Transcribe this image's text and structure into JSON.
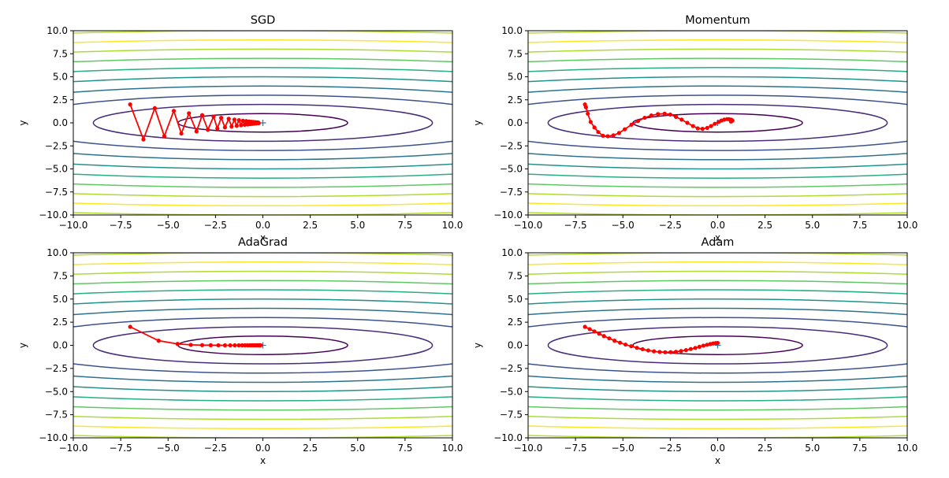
{
  "chart_data": [
    {
      "type": "line",
      "title": "SGD",
      "xlabel": "x",
      "ylabel": "y",
      "xlim": [
        -10,
        10
      ],
      "ylim": [
        -10,
        10
      ],
      "xticks": [
        "−10.0",
        "−7.5",
        "−5.0",
        "−2.5",
        "0.0",
        "2.5",
        "5.0",
        "7.5",
        "10.0"
      ],
      "yticks": [
        "−10.0",
        "−7.5",
        "−5.0",
        "−2.5",
        "0.0",
        "2.5",
        "5.0",
        "7.5",
        "10.0"
      ],
      "contour_levels": [
        1,
        4,
        9,
        16,
        25,
        36,
        49,
        64,
        81,
        100
      ],
      "minimum_marker": [
        0,
        0
      ],
      "series": [
        {
          "color": "#ff0000",
          "x": [
            -7.0,
            -6.3,
            -5.7,
            -5.2,
            -4.7,
            -4.3,
            -3.9,
            -3.5,
            -3.2,
            -2.9,
            -2.6,
            -2.4,
            -2.2,
            -2.0,
            -1.8,
            -1.65,
            -1.5,
            -1.38,
            -1.26,
            -1.15,
            -1.05,
            -0.96,
            -0.88,
            -0.81,
            -0.74,
            -0.68,
            -0.62,
            -0.57,
            -0.52,
            -0.48,
            -0.44,
            -0.41,
            -0.38,
            -0.35,
            -0.32,
            -0.3,
            -0.28,
            -0.26,
            -0.24,
            -0.22
          ],
          "y": [
            2.0,
            -1.8,
            1.6,
            -1.45,
            1.3,
            -1.16,
            1.04,
            -0.93,
            0.84,
            -0.75,
            0.68,
            -0.61,
            0.55,
            -0.49,
            0.44,
            -0.4,
            0.36,
            -0.32,
            0.29,
            -0.26,
            0.23,
            -0.21,
            0.19,
            -0.17,
            0.15,
            -0.14,
            0.12,
            -0.11,
            0.1,
            -0.09,
            0.08,
            -0.07,
            0.065,
            -0.06,
            0.05,
            -0.045,
            0.04,
            -0.035,
            0.03,
            -0.03
          ]
        }
      ]
    },
    {
      "type": "line",
      "title": "Momentum",
      "xlabel": "x",
      "ylabel": "y",
      "xlim": [
        -10,
        10
      ],
      "ylim": [
        -10,
        10
      ],
      "xticks": [
        "−10.0",
        "−7.5",
        "−5.0",
        "−2.5",
        "0.0",
        "2.5",
        "5.0",
        "7.5",
        "10.0"
      ],
      "yticks": [
        "−10.0",
        "−7.5",
        "−5.0",
        "−2.5",
        "0.0",
        "2.5",
        "5.0",
        "7.5",
        "10.0"
      ],
      "contour_levels": [
        1,
        4,
        9,
        16,
        25,
        36,
        49,
        64,
        81,
        100
      ],
      "minimum_marker": [
        0,
        0
      ],
      "series": [
        {
          "color": "#ff0000",
          "x": [
            -7.0,
            -6.95,
            -6.85,
            -6.7,
            -6.5,
            -6.3,
            -6.05,
            -5.8,
            -5.5,
            -5.2,
            -4.9,
            -4.55,
            -4.2,
            -3.85,
            -3.5,
            -3.15,
            -2.8,
            -2.5,
            -2.2,
            -1.9,
            -1.6,
            -1.3,
            -1.05,
            -0.8,
            -0.55,
            -0.35,
            -0.15,
            0.05,
            0.2,
            0.35,
            0.5,
            0.6,
            0.7,
            0.75,
            0.78,
            0.75,
            0.7
          ],
          "y": [
            2.0,
            1.7,
            1.0,
            0.1,
            -0.5,
            -1.0,
            -1.4,
            -1.45,
            -1.35,
            -1.1,
            -0.7,
            -0.2,
            0.2,
            0.55,
            0.8,
            0.95,
            1.0,
            0.9,
            0.65,
            0.35,
            0.0,
            -0.35,
            -0.6,
            -0.65,
            -0.55,
            -0.35,
            -0.1,
            0.1,
            0.25,
            0.35,
            0.4,
            0.4,
            0.35,
            0.3,
            0.25,
            0.2,
            0.15
          ]
        }
      ]
    },
    {
      "type": "line",
      "title": "AdaGrad",
      "xlabel": "x",
      "ylabel": "y",
      "xlim": [
        -10,
        10
      ],
      "ylim": [
        -10,
        10
      ],
      "xticks": [
        "−10.0",
        "−7.5",
        "−5.0",
        "−2.5",
        "0.0",
        "2.5",
        "5.0",
        "7.5",
        "10.0"
      ],
      "yticks": [
        "−10.0",
        "−7.5",
        "−5.0",
        "−2.5",
        "0.0",
        "2.5",
        "5.0",
        "7.5",
        "10.0"
      ],
      "contour_levels": [
        1,
        4,
        9,
        16,
        25,
        36,
        49,
        64,
        81,
        100
      ],
      "minimum_marker": [
        0,
        0
      ],
      "series": [
        {
          "color": "#ff0000",
          "x": [
            -7.0,
            -5.5,
            -4.5,
            -3.8,
            -3.2,
            -2.75,
            -2.35,
            -2.0,
            -1.72,
            -1.48,
            -1.27,
            -1.09,
            -0.94,
            -0.81,
            -0.7,
            -0.6,
            -0.52,
            -0.45,
            -0.39,
            -0.34,
            -0.29,
            -0.25,
            -0.22,
            -0.19,
            -0.16,
            -0.14,
            -0.12
          ],
          "y": [
            2.0,
            0.5,
            0.15,
            0.05,
            0.02,
            0.01,
            0.004,
            0.002,
            0.001,
            0,
            0,
            0,
            0,
            0,
            0,
            0,
            0,
            0,
            0,
            0,
            0,
            0,
            0,
            0,
            0,
            0,
            0
          ]
        }
      ]
    },
    {
      "type": "line",
      "title": "Adam",
      "xlabel": "x",
      "ylabel": "y",
      "xlim": [
        -10,
        10
      ],
      "ylim": [
        -10,
        10
      ],
      "xticks": [
        "−10.0",
        "−7.5",
        "−5.0",
        "−2.5",
        "0.0",
        "2.5",
        "5.0",
        "7.5",
        "10.0"
      ],
      "yticks": [
        "−10.0",
        "−7.5",
        "−5.0",
        "−2.5",
        "0.0",
        "2.5",
        "5.0",
        "7.5",
        "10.0"
      ],
      "contour_levels": [
        1,
        4,
        9,
        16,
        25,
        36,
        49,
        64,
        81,
        100
      ],
      "minimum_marker": [
        0,
        0
      ],
      "series": [
        {
          "color": "#ff0000",
          "x": [
            -7.0,
            -6.75,
            -6.5,
            -6.25,
            -6.0,
            -5.72,
            -5.44,
            -5.15,
            -4.86,
            -4.56,
            -4.26,
            -3.96,
            -3.66,
            -3.36,
            -3.06,
            -2.77,
            -2.48,
            -2.2,
            -1.93,
            -1.67,
            -1.42,
            -1.18,
            -0.96,
            -0.75,
            -0.56,
            -0.39,
            -0.24,
            -0.11,
            0.0
          ],
          "y": [
            2.0,
            1.75,
            1.5,
            1.25,
            1.0,
            0.75,
            0.5,
            0.28,
            0.08,
            -0.1,
            -0.27,
            -0.42,
            -0.55,
            -0.65,
            -0.72,
            -0.75,
            -0.74,
            -0.7,
            -0.62,
            -0.52,
            -0.4,
            -0.28,
            -0.16,
            -0.04,
            0.06,
            0.14,
            0.2,
            0.24,
            0.26
          ]
        }
      ]
    }
  ]
}
